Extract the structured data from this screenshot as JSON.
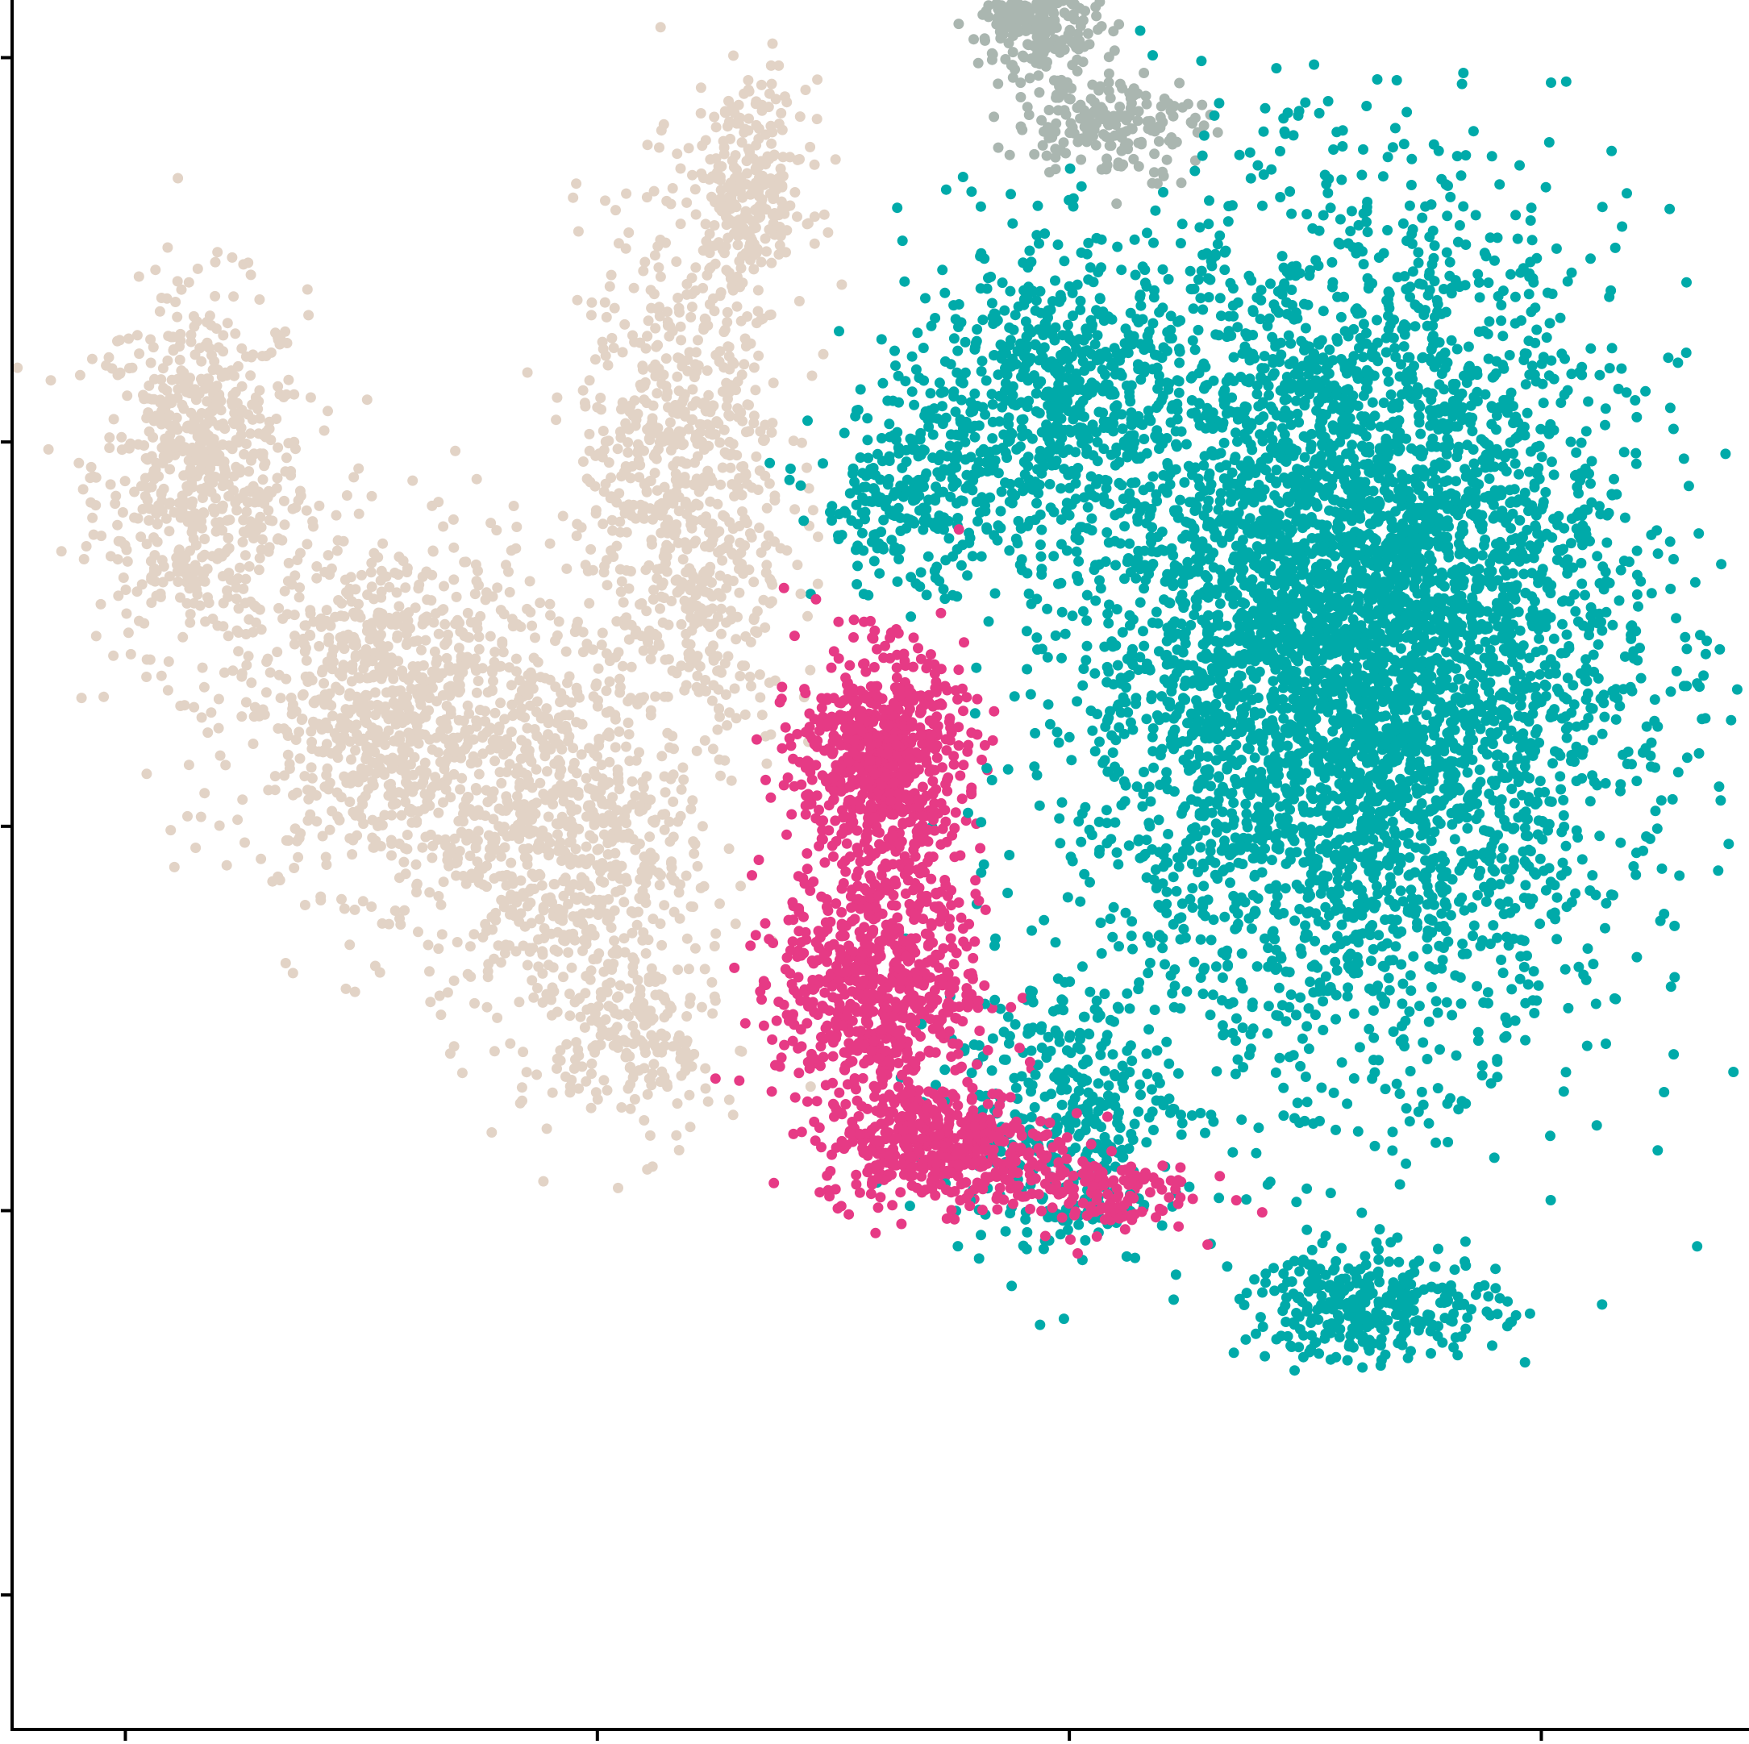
{
  "chart_data": {
    "type": "scatter",
    "title": "",
    "xlabel": "",
    "ylabel": "",
    "x_ticks": [
      "",
      "",
      "",
      ""
    ],
    "y_ticks": [
      "",
      "",
      "",
      "",
      ""
    ],
    "xlim": [
      -3.2,
      15.2
    ],
    "ylim": [
      -4.4,
      13.6
    ],
    "x_tick_values": [
      -2,
      3,
      8,
      13
    ],
    "y_tick_values": [
      -3.0,
      1.0,
      5.0,
      9.0,
      13.0
    ],
    "grid": false,
    "legend": "none",
    "marker": "filled circle",
    "series": [
      {
        "color": "#e2d3c6",
        "clusters": [
          {
            "center": [
              -1.2,
              8.7
            ],
            "spread": [
              0.9,
              1.5
            ],
            "count": 650
          },
          {
            "center": [
              0.8,
              6.2
            ],
            "spread": [
              1.3,
              1.5
            ],
            "count": 900
          },
          {
            "center": [
              2.6,
              4.8
            ],
            "spread": [
              1.1,
              1.6
            ],
            "count": 650
          },
          {
            "center": [
              3.9,
              8.4
            ],
            "spread": [
              0.9,
              2.4
            ],
            "count": 800
          },
          {
            "center": [
              4.6,
              11.6
            ],
            "spread": [
              0.5,
              0.9
            ],
            "count": 280
          },
          {
            "center": [
              3.4,
              2.8
            ],
            "spread": [
              0.7,
              0.9
            ],
            "count": 200
          }
        ]
      },
      {
        "color": "#aab6b0",
        "clusters": [
          {
            "center": [
              7.7,
              13.6
            ],
            "spread": [
              0.55,
              0.6
            ],
            "count": 380
          },
          {
            "center": [
              8.4,
              12.3
            ],
            "spread": [
              0.8,
              0.45
            ],
            "count": 180
          }
        ]
      },
      {
        "color": "#00aaa9",
        "clusters": [
          {
            "center": [
              11.0,
              7.0
            ],
            "spread": [
              2.3,
              3.4
            ],
            "count": 5200
          },
          {
            "center": [
              7.8,
              9.5
            ],
            "spread": [
              1.2,
              1.2
            ],
            "count": 600
          },
          {
            "center": [
              6.3,
              8.4
            ],
            "spread": [
              0.8,
              0.8
            ],
            "count": 250
          },
          {
            "center": [
              11.2,
              0.0
            ],
            "spread": [
              1.1,
              0.45
            ],
            "count": 320
          },
          {
            "center": [
              7.9,
              2.0
            ],
            "spread": [
              1.0,
              1.2
            ],
            "count": 350
          }
        ]
      },
      {
        "color": "#e63a85",
        "clusters": [
          {
            "center": [
              6.0,
              5.7
            ],
            "spread": [
              0.7,
              0.9
            ],
            "count": 700
          },
          {
            "center": [
              6.0,
              3.4
            ],
            "spread": [
              0.85,
              1.1
            ],
            "count": 700
          },
          {
            "center": [
              6.6,
              1.7
            ],
            "spread": [
              1.0,
              0.5
            ],
            "count": 450
          },
          {
            "center": [
              8.2,
              1.2
            ],
            "spread": [
              0.9,
              0.35
            ],
            "count": 150
          }
        ]
      }
    ]
  }
}
